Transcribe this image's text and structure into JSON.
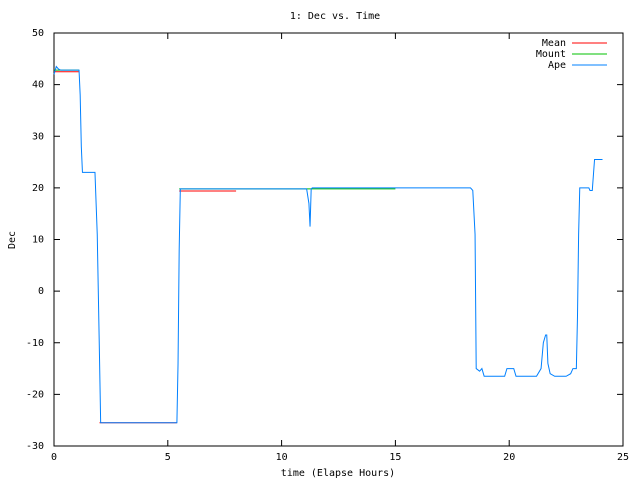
{
  "chart_data": {
    "type": "line",
    "title": "1: Dec vs. Time",
    "x_label": "time (Elapse Hours)",
    "y_label": "Dec",
    "xlim": [
      0,
      25
    ],
    "xticks": [
      0,
      5,
      10,
      15,
      20,
      25
    ],
    "ylim": [
      -30,
      50
    ],
    "yticks": [
      -30,
      -20,
      -10,
      0,
      10,
      20,
      30,
      40,
      50
    ],
    "legend": "top-right",
    "series": [
      {
        "name": "Mean",
        "color": "#ff0000",
        "x": [
          0,
          1.1,
          1.5,
          2.0,
          5.4,
          5.45,
          5.5,
          8.0
        ],
        "values": [
          42.5,
          42.5,
          null,
          -25.5,
          -25.5,
          null,
          19.4,
          19.4
        ]
      },
      {
        "name": "Mount",
        "color": "#00c000",
        "x": [
          0,
          1.1,
          1.5,
          5.5,
          15.0
        ],
        "values": [
          42.8,
          42.8,
          null,
          19.8,
          19.8
        ]
      },
      {
        "name": "Ape",
        "color": "#0080ff",
        "x": [
          0,
          0.1,
          0.2,
          0.3,
          1.1,
          1.15,
          1.2,
          1.25,
          1.8,
          1.9,
          2.0,
          2.05,
          5.4,
          5.45,
          5.5,
          5.55,
          11.1,
          11.2,
          11.25,
          11.3,
          11.35,
          18.3,
          18.4,
          18.5,
          18.55,
          18.7,
          18.8,
          18.9,
          19.8,
          19.9,
          20.2,
          20.3,
          21.2,
          21.4,
          21.5,
          21.6,
          21.65,
          21.7,
          21.8,
          22.0,
          22.5,
          22.7,
          22.8,
          22.95,
          23.0,
          23.05,
          23.1,
          23.5,
          23.55,
          23.65,
          23.75,
          24.1
        ],
        "values": [
          42,
          43.5,
          43,
          42.8,
          42.8,
          38,
          28,
          23,
          23,
          11,
          -13,
          -25.5,
          -25.5,
          -14,
          8,
          19.8,
          19.8,
          17,
          12.5,
          19.8,
          20,
          20,
          19.5,
          11,
          -15,
          -15.5,
          -15,
          -16.5,
          -16.5,
          -15,
          -15,
          -16.5,
          -16.5,
          -15,
          -10,
          -8.5,
          -8.5,
          -14,
          -16,
          -16.5,
          -16.5,
          -16,
          -15,
          -15,
          -5,
          11,
          20,
          20,
          19.5,
          19.5,
          25.5,
          25.5
        ]
      }
    ]
  }
}
